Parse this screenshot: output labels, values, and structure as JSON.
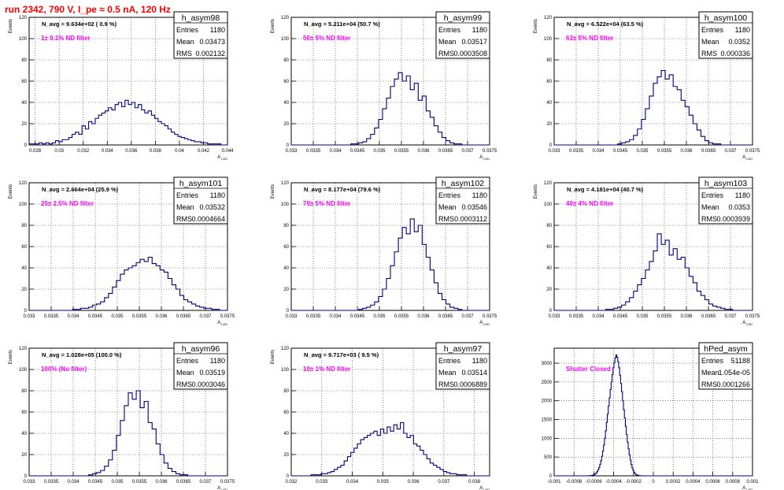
{
  "header": {
    "title": "run 2342,   790 V, I_pe ≈ 0.5 nA, 120 Hz",
    "color": "#ff0000"
  },
  "style": {
    "line_color": "#000080",
    "annotation_color": "#ff00ff",
    "grid_color": "#000000"
  },
  "chart_data": [
    {
      "type": "bar",
      "name": "h_asym98",
      "subtitle": "N_avg = 9.634e+02 ( 0.9 %)",
      "annotation": "1± 0.1% ND filter",
      "stats": {
        "entries": "1180",
        "mean": "0.03473",
        "rms": "0.002132"
      },
      "xlabel": "A_LED",
      "ylabel": "Events",
      "xlim": [
        0.0275,
        0.044
      ],
      "ylim": [
        0,
        120
      ],
      "xticks": [
        {
          "v": 0.028,
          "t": "0.028"
        },
        {
          "v": 0.03,
          "t": "0.03"
        },
        {
          "v": 0.032,
          "t": "0.032"
        },
        {
          "v": 0.034,
          "t": "0.034"
        },
        {
          "v": 0.036,
          "t": "0.036"
        },
        {
          "v": 0.038,
          "t": "0.038"
        },
        {
          "v": 0.04,
          "t": "0.04"
        },
        {
          "v": 0.042,
          "t": "0.042"
        },
        {
          "v": 0.044,
          "t": "0.044"
        }
      ],
      "yticks": [
        0,
        20,
        40,
        60,
        80,
        100,
        120
      ],
      "values": [
        1,
        1,
        1,
        2,
        1,
        2,
        1,
        2,
        4,
        3,
        5,
        5,
        7,
        10,
        12,
        10,
        18,
        15,
        22,
        20,
        25,
        28,
        30,
        32,
        35,
        33,
        38,
        40,
        36,
        42,
        38,
        40,
        35,
        38,
        33,
        30,
        32,
        28,
        25,
        22,
        20,
        18,
        15,
        12,
        10,
        8,
        7,
        6,
        5,
        4,
        3,
        3,
        2,
        2,
        1,
        1,
        1,
        1,
        0,
        0
      ]
    },
    {
      "type": "bar",
      "name": "h_asym99",
      "subtitle": "N_avg = 5.211e+04 (50.7 %)",
      "annotation": "50± 5% ND filter",
      "stats": {
        "entries": "1180",
        "mean": "0.03517",
        "rms": "0.0003508"
      },
      "xlabel": "A_LED",
      "ylabel": "Events",
      "xlim": [
        0.033,
        0.0375
      ],
      "ylim": [
        0,
        120
      ],
      "xticks": [
        {
          "v": 0.033,
          "t": "0.033"
        },
        {
          "v": 0.0335,
          "t": "0.0335"
        },
        {
          "v": 0.034,
          "t": "0.034"
        },
        {
          "v": 0.0345,
          "t": "0.0345"
        },
        {
          "v": 0.035,
          "t": "0.035"
        },
        {
          "v": 0.0355,
          "t": "0.0355"
        },
        {
          "v": 0.036,
          "t": "0.036"
        },
        {
          "v": 0.0365,
          "t": "0.0365"
        },
        {
          "v": 0.037,
          "t": "0.037"
        },
        {
          "v": 0.0375,
          "t": "0.0375"
        }
      ],
      "yticks": [
        0,
        20,
        40,
        60,
        80,
        100,
        120
      ],
      "values": [
        0,
        0,
        0,
        0,
        0,
        0,
        0,
        0,
        0,
        0,
        0,
        0,
        0,
        0,
        0,
        1,
        1,
        2,
        3,
        6,
        10,
        16,
        24,
        34,
        44,
        55,
        62,
        68,
        60,
        65,
        52,
        58,
        42,
        46,
        32,
        26,
        18,
        12,
        7,
        4,
        2,
        1,
        1,
        0,
        0,
        0,
        0,
        0,
        0,
        0
      ]
    },
    {
      "type": "bar",
      "name": "h_asym100",
      "subtitle": "N_avg = 6.522e+04 (63.5 %)",
      "annotation": "63± 5% ND filter",
      "stats": {
        "entries": "1180",
        "mean": "0.0352",
        "rms": "0.000336"
      },
      "xlabel": "A_LED",
      "ylabel": "Events",
      "xlim": [
        0.033,
        0.0375
      ],
      "ylim": [
        0,
        120
      ],
      "xticks": [
        {
          "v": 0.033,
          "t": "0.033"
        },
        {
          "v": 0.0335,
          "t": "0.0335"
        },
        {
          "v": 0.034,
          "t": "0.034"
        },
        {
          "v": 0.0345,
          "t": "0.0345"
        },
        {
          "v": 0.035,
          "t": "0.035"
        },
        {
          "v": 0.0355,
          "t": "0.0355"
        },
        {
          "v": 0.036,
          "t": "0.036"
        },
        {
          "v": 0.0365,
          "t": "0.0365"
        },
        {
          "v": 0.037,
          "t": "0.037"
        },
        {
          "v": 0.0375,
          "t": "0.0375"
        }
      ],
      "yticks": [
        0,
        20,
        40,
        60,
        80,
        100,
        120
      ],
      "values": [
        0,
        0,
        0,
        0,
        0,
        0,
        0,
        0,
        0,
        0,
        0,
        0,
        0,
        0,
        0,
        0,
        1,
        2,
        3,
        5,
        9,
        15,
        24,
        34,
        46,
        58,
        64,
        70,
        62,
        66,
        55,
        52,
        42,
        36,
        28,
        20,
        14,
        8,
        4,
        2,
        1,
        1,
        0,
        0,
        0,
        0,
        0,
        0,
        0,
        0
      ]
    },
    {
      "type": "bar",
      "name": "h_asym101",
      "subtitle": "N_avg = 2.664e+04 (25.9 %)",
      "annotation": "25± 2.5% ND filter",
      "stats": {
        "entries": "1180",
        "mean": "0.03532",
        "rms": "0.0004664"
      },
      "xlabel": "A_LED",
      "ylabel": "Events",
      "xlim": [
        0.033,
        0.0375
      ],
      "ylim": [
        0,
        120
      ],
      "xticks": [
        {
          "v": 0.033,
          "t": "0.033"
        },
        {
          "v": 0.0335,
          "t": "0.0335"
        },
        {
          "v": 0.034,
          "t": "0.034"
        },
        {
          "v": 0.0345,
          "t": "0.0345"
        },
        {
          "v": 0.035,
          "t": "0.035"
        },
        {
          "v": 0.0355,
          "t": "0.0355"
        },
        {
          "v": 0.036,
          "t": "0.036"
        },
        {
          "v": 0.0365,
          "t": "0.0365"
        },
        {
          "v": 0.037,
          "t": "0.037"
        },
        {
          "v": 0.0375,
          "t": "0.0375"
        }
      ],
      "yticks": [
        0,
        20,
        40,
        60,
        80,
        100,
        120
      ],
      "values": [
        0,
        0,
        0,
        0,
        0,
        0,
        0,
        0,
        0,
        0,
        0,
        1,
        1,
        2,
        2,
        3,
        5,
        6,
        8,
        12,
        16,
        22,
        28,
        34,
        38,
        40,
        42,
        45,
        48,
        46,
        50,
        44,
        42,
        38,
        36,
        30,
        24,
        20,
        14,
        10,
        8,
        6,
        4,
        3,
        2,
        2,
        1,
        1,
        0,
        0
      ]
    },
    {
      "type": "bar",
      "name": "h_asym102",
      "subtitle": "N_avg = 8.177e+04 (79.6 %)",
      "annotation": "79± 5% ND filter",
      "stats": {
        "entries": "1180",
        "mean": "0.03546",
        "rms": "0.0003112"
      },
      "xlabel": "A_LED",
      "ylabel": "Events",
      "xlim": [
        0.033,
        0.0375
      ],
      "ylim": [
        0,
        120
      ],
      "xticks": [
        {
          "v": 0.033,
          "t": "0.033"
        },
        {
          "v": 0.0335,
          "t": "0.0335"
        },
        {
          "v": 0.034,
          "t": "0.034"
        },
        {
          "v": 0.0345,
          "t": "0.0345"
        },
        {
          "v": 0.035,
          "t": "0.035"
        },
        {
          "v": 0.0355,
          "t": "0.0355"
        },
        {
          "v": 0.036,
          "t": "0.036"
        },
        {
          "v": 0.0365,
          "t": "0.0365"
        },
        {
          "v": 0.037,
          "t": "0.037"
        },
        {
          "v": 0.0375,
          "t": "0.0375"
        }
      ],
      "yticks": [
        0,
        20,
        40,
        60,
        80,
        100,
        120
      ],
      "values": [
        0,
        0,
        0,
        0,
        0,
        0,
        0,
        0,
        0,
        0,
        0,
        0,
        0,
        0,
        0,
        0,
        0,
        1,
        2,
        3,
        5,
        8,
        13,
        20,
        30,
        42,
        55,
        68,
        78,
        72,
        86,
        74,
        80,
        62,
        50,
        38,
        26,
        16,
        10,
        6,
        3,
        2,
        1,
        0,
        0,
        0,
        0,
        0,
        0,
        0
      ]
    },
    {
      "type": "bar",
      "name": "h_asym103",
      "subtitle": "N_avg = 4.181e+04 (40.7 %)",
      "annotation": "40± 4% ND filter",
      "stats": {
        "entries": "1180",
        "mean": "0.0353",
        "rms": "0.0003939"
      },
      "xlabel": "A_LED",
      "ylabel": "Events",
      "xlim": [
        0.033,
        0.0375
      ],
      "ylim": [
        0,
        120
      ],
      "xticks": [
        {
          "v": 0.033,
          "t": "0.033"
        },
        {
          "v": 0.0335,
          "t": "0.0335"
        },
        {
          "v": 0.034,
          "t": "0.034"
        },
        {
          "v": 0.0345,
          "t": "0.0345"
        },
        {
          "v": 0.035,
          "t": "0.035"
        },
        {
          "v": 0.0355,
          "t": "0.0355"
        },
        {
          "v": 0.036,
          "t": "0.036"
        },
        {
          "v": 0.0365,
          "t": "0.0365"
        },
        {
          "v": 0.037,
          "t": "0.037"
        },
        {
          "v": 0.0375,
          "t": "0.0375"
        }
      ],
      "yticks": [
        0,
        20,
        40,
        60,
        80,
        100,
        120
      ],
      "values": [
        0,
        0,
        0,
        0,
        0,
        0,
        0,
        0,
        0,
        0,
        0,
        0,
        0,
        1,
        1,
        2,
        3,
        5,
        8,
        12,
        18,
        24,
        30,
        38,
        46,
        56,
        72,
        62,
        66,
        52,
        58,
        48,
        50,
        40,
        32,
        26,
        18,
        14,
        10,
        6,
        4,
        3,
        2,
        1,
        1,
        0,
        0,
        0,
        0,
        0
      ]
    },
    {
      "type": "bar",
      "name": "h_asym96",
      "subtitle": "N_avg = 1.028e+05 (100.0 %)",
      "annotation": "100% (No filter)",
      "stats": {
        "entries": "1180",
        "mean": "0.03519",
        "rms": "0.0003046"
      },
      "xlabel": "A_LED",
      "ylabel": "Events",
      "xlim": [
        0.033,
        0.0375
      ],
      "ylim": [
        0,
        120
      ],
      "xticks": [
        {
          "v": 0.033,
          "t": "0.033"
        },
        {
          "v": 0.0335,
          "t": "0.0335"
        },
        {
          "v": 0.034,
          "t": "0.034"
        },
        {
          "v": 0.0345,
          "t": "0.0345"
        },
        {
          "v": 0.035,
          "t": "0.035"
        },
        {
          "v": 0.0355,
          "t": "0.0355"
        },
        {
          "v": 0.036,
          "t": "0.036"
        },
        {
          "v": 0.0365,
          "t": "0.0365"
        },
        {
          "v": 0.037,
          "t": "0.037"
        },
        {
          "v": 0.0375,
          "t": "0.0375"
        }
      ],
      "yticks": [
        0,
        20,
        40,
        60,
        80,
        100,
        120
      ],
      "values": [
        0,
        0,
        0,
        0,
        0,
        0,
        0,
        0,
        0,
        0,
        0,
        0,
        0,
        0,
        0,
        1,
        2,
        3,
        5,
        9,
        15,
        24,
        38,
        52,
        66,
        78,
        72,
        80,
        64,
        70,
        50,
        44,
        30,
        20,
        12,
        7,
        4,
        2,
        1,
        1,
        0,
        0,
        0,
        0,
        0,
        0,
        0,
        0,
        0,
        0
      ]
    },
    {
      "type": "bar",
      "name": "h_asym97",
      "subtitle": "N_avg = 9.717e+03 ( 9.5 %)",
      "annotation": "10± 1% ND filter",
      "stats": {
        "entries": "1180",
        "mean": "0.03514",
        "rms": "0.0006889"
      },
      "xlabel": "A_LED",
      "ylabel": "Events",
      "xlim": [
        0.032,
        0.0385
      ],
      "ylim": [
        0,
        120
      ],
      "xticks": [
        {
          "v": 0.032,
          "t": "0.032"
        },
        {
          "v": 0.033,
          "t": "0.033"
        },
        {
          "v": 0.034,
          "t": "0.034"
        },
        {
          "v": 0.035,
          "t": "0.035"
        },
        {
          "v": 0.036,
          "t": "0.036"
        },
        {
          "v": 0.037,
          "t": "0.037"
        },
        {
          "v": 0.038,
          "t": "0.038"
        }
      ],
      "yticks": [
        0,
        20,
        40,
        60,
        80,
        100,
        120
      ],
      "values": [
        0,
        0,
        0,
        0,
        0,
        0,
        1,
        1,
        1,
        2,
        2,
        3,
        4,
        6,
        8,
        10,
        14,
        18,
        22,
        26,
        30,
        34,
        36,
        38,
        40,
        42,
        38,
        44,
        40,
        46,
        42,
        48,
        44,
        50,
        40,
        36,
        38,
        30,
        28,
        24,
        20,
        16,
        12,
        10,
        8,
        6,
        4,
        3,
        2,
        2,
        1,
        1,
        1,
        0,
        0,
        0,
        0,
        0,
        0,
        0
      ]
    },
    {
      "type": "bar",
      "name": "hPed_asym",
      "subtitle": "",
      "annotation": "Shutter Closed",
      "stats": {
        "entries": "51188",
        "mean": "1.054e-05",
        "rms": "0.0001266"
      },
      "xlabel": "A_LED",
      "ylabel": "",
      "xlim": [
        -0.001,
        0.001
      ],
      "ylim": [
        0,
        3400
      ],
      "xticks": [
        {
          "v": -0.001,
          "t": "-0.001"
        },
        {
          "v": -0.0008,
          "t": "-0.0008"
        },
        {
          "v": -0.0006,
          "t": "-0.0006"
        },
        {
          "v": -0.0004,
          "t": "-0.0004"
        },
        {
          "v": -0.0002,
          "t": "-0.0002"
        },
        {
          "v": 0,
          "t": "0"
        },
        {
          "v": 0.0002,
          "t": "0.0002"
        },
        {
          "v": 0.0004,
          "t": "0.0004"
        },
        {
          "v": 0.0006,
          "t": "0.0006"
        },
        {
          "v": 0.0008,
          "t": "0.0008"
        },
        {
          "v": 0.001,
          "t": "0.001"
        }
      ],
      "yticks": [
        0,
        500,
        1000,
        1500,
        2000,
        2500,
        3000
      ],
      "values": [
        0,
        0,
        0,
        0,
        0,
        0,
        0,
        0,
        0,
        0,
        0,
        0,
        0,
        0,
        0,
        0,
        0,
        0,
        0,
        0,
        0,
        0,
        0,
        0,
        0,
        0,
        0,
        0,
        0,
        0,
        0,
        0,
        0,
        0,
        0,
        0,
        2,
        3,
        5,
        8,
        14,
        22,
        34,
        52,
        78,
        112,
        160,
        220,
        300,
        400,
        520,
        660,
        820,
        1000,
        1200,
        1420,
        1640,
        1860,
        2080,
        2300,
        2500,
        2700,
        2880,
        3020,
        3140,
        3220,
        3160,
        3040,
        2880,
        2680,
        2460,
        2240,
        2000,
        1760,
        1540,
        1320,
        1100,
        900,
        720,
        560,
        420,
        300,
        210,
        140,
        90,
        56,
        34,
        20,
        12,
        7,
        4,
        2,
        1,
        0,
        0,
        0,
        0,
        0,
        0,
        0,
        0,
        0,
        0,
        0,
        0,
        0,
        0,
        0,
        0,
        0,
        0,
        0,
        0,
        0,
        0,
        0,
        0,
        0,
        0,
        0,
        0,
        0,
        0,
        0,
        0,
        0,
        0,
        0,
        0,
        0,
        0,
        0,
        0,
        0,
        0,
        0,
        0,
        0,
        0,
        0,
        0,
        0,
        0,
        0,
        0,
        0,
        0,
        0,
        0,
        0,
        0,
        0,
        0,
        0,
        0,
        0,
        0,
        0,
        0,
        0,
        0,
        0,
        0,
        0,
        0,
        0,
        0,
        0,
        0,
        0,
        0,
        0,
        0,
        0,
        0,
        0,
        0,
        0,
        0,
        0,
        0,
        0,
        0,
        0,
        0,
        0,
        0,
        0,
        0,
        0,
        0,
        0,
        0,
        0,
        0,
        0,
        0,
        0,
        0,
        0,
        0,
        0,
        0,
        0,
        0,
        0,
        0,
        0,
        0
      ]
    }
  ]
}
